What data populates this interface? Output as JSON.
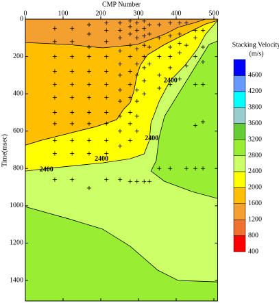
{
  "chart_data": {
    "type": "contour",
    "x_label": "CMP Number",
    "y_label": "Time(msec)",
    "xlim": [
      0,
      510
    ],
    "xticks": [
      0,
      100,
      200,
      300,
      400,
      500
    ],
    "ylim": [
      0,
      1510
    ],
    "yticks": [
      0,
      200,
      400,
      600,
      800,
      1000,
      1200,
      1400
    ],
    "y_reversed": true,
    "background_color": "#ccff66",
    "regions": [
      {
        "color": "#99ee33",
        "points": [
          [
            0,
            1005
          ],
          [
            115,
            1070
          ],
          [
            205,
            1125
          ],
          [
            278,
            1217
          ],
          [
            351,
            1345
          ],
          [
            405,
            1400
          ],
          [
            510,
            1408
          ],
          [
            510,
            1510
          ],
          [
            0,
            1510
          ]
        ]
      },
      {
        "color": "#99ee33",
        "points": [
          [
            487,
            136
          ],
          [
            369,
            521
          ],
          [
            355,
            631
          ],
          [
            347,
            759
          ],
          [
            333,
            814
          ],
          [
            369,
            869
          ],
          [
            442,
            924
          ],
          [
            510,
            961
          ],
          [
            510,
            117
          ]
        ]
      },
      {
        "color": "#ffff00",
        "points": [
          [
            0,
            814
          ],
          [
            78,
            796
          ],
          [
            205,
            770
          ],
          [
            278,
            748
          ],
          [
            315,
            722
          ],
          [
            329,
            649
          ],
          [
            333,
            557
          ],
          [
            355,
            440
          ],
          [
            384,
            330
          ],
          [
            424,
            246
          ],
          [
            456,
            161
          ],
          [
            478,
            81
          ],
          [
            510,
            7
          ],
          [
            478,
            26
          ],
          [
            442,
            62
          ],
          [
            405,
            99
          ],
          [
            369,
            136
          ],
          [
            324,
            191
          ],
          [
            305,
            246
          ],
          [
            296,
            301
          ],
          [
            287,
            392
          ],
          [
            278,
            447
          ],
          [
            260,
            484
          ],
          [
            242,
            539
          ],
          [
            187,
            576
          ],
          [
            115,
            612
          ],
          [
            42,
            649
          ],
          [
            0,
            675
          ]
        ]
      },
      {
        "color": "#ffbf00",
        "points": [
          [
            0,
            0
          ],
          [
            510,
            0
          ],
          [
            510,
            7
          ],
          [
            478,
            26
          ],
          [
            442,
            62
          ],
          [
            405,
            99
          ],
          [
            369,
            136
          ],
          [
            324,
            191
          ],
          [
            305,
            246
          ],
          [
            296,
            301
          ],
          [
            287,
            392
          ],
          [
            278,
            447
          ],
          [
            260,
            484
          ],
          [
            242,
            539
          ],
          [
            187,
            576
          ],
          [
            115,
            612
          ],
          [
            42,
            649
          ],
          [
            0,
            675
          ]
        ]
      },
      {
        "color": "#f4a030",
        "points": [
          [
            0,
            0
          ],
          [
            478,
            0
          ],
          [
            451,
            18
          ],
          [
            405,
            44
          ],
          [
            369,
            81
          ],
          [
            296,
            136
          ],
          [
            205,
            154
          ],
          [
            115,
            136
          ],
          [
            0,
            125
          ]
        ]
      }
    ],
    "contour_labels": [
      {
        "text": "2400",
        "x": 385,
        "y": 330
      },
      {
        "text": "2400",
        "x": 335,
        "y": 640
      },
      {
        "text": "2400",
        "x": 202,
        "y": 751
      },
      {
        "text": "2400",
        "x": 56,
        "y": 807
      }
    ],
    "points": [
      [
        78,
        50
      ],
      [
        78,
        120
      ],
      [
        78,
        200
      ],
      [
        78,
        280
      ],
      [
        78,
        350
      ],
      [
        78,
        420
      ],
      [
        78,
        500
      ],
      [
        78,
        560
      ],
      [
        78,
        650
      ],
      [
        78,
        720
      ],
      [
        78,
        860
      ],
      [
        124,
        50
      ],
      [
        124,
        120
      ],
      [
        124,
        200
      ],
      [
        124,
        280
      ],
      [
        124,
        350
      ],
      [
        124,
        420
      ],
      [
        124,
        500
      ],
      [
        124,
        560
      ],
      [
        124,
        650
      ],
      [
        124,
        720
      ],
      [
        124,
        860
      ],
      [
        169,
        30
      ],
      [
        169,
        80
      ],
      [
        169,
        150
      ],
      [
        169,
        200
      ],
      [
        169,
        280
      ],
      [
        169,
        350
      ],
      [
        169,
        420
      ],
      [
        169,
        500
      ],
      [
        169,
        560
      ],
      [
        169,
        650
      ],
      [
        169,
        720
      ],
      [
        169,
        905
      ],
      [
        215,
        20
      ],
      [
        215,
        60
      ],
      [
        215,
        120
      ],
      [
        215,
        200
      ],
      [
        215,
        280
      ],
      [
        215,
        350
      ],
      [
        215,
        420
      ],
      [
        215,
        500
      ],
      [
        215,
        560
      ],
      [
        215,
        650
      ],
      [
        215,
        720
      ],
      [
        215,
        860
      ],
      [
        251,
        20
      ],
      [
        251,
        60
      ],
      [
        251,
        100
      ],
      [
        251,
        170
      ],
      [
        251,
        240
      ],
      [
        251,
        300
      ],
      [
        251,
        380
      ],
      [
        251,
        440
      ],
      [
        251,
        520
      ],
      [
        251,
        600
      ],
      [
        251,
        680
      ],
      [
        251,
        860
      ],
      [
        278,
        10
      ],
      [
        278,
        40
      ],
      [
        278,
        80
      ],
      [
        278,
        140
      ],
      [
        278,
        200
      ],
      [
        278,
        280
      ],
      [
        278,
        350
      ],
      [
        278,
        420
      ],
      [
        278,
        500
      ],
      [
        278,
        560
      ],
      [
        278,
        650
      ],
      [
        278,
        870
      ],
      [
        296,
        20
      ],
      [
        296,
        60
      ],
      [
        296,
        100
      ],
      [
        296,
        160
      ],
      [
        296,
        240
      ],
      [
        296,
        300
      ],
      [
        296,
        380
      ],
      [
        296,
        440
      ],
      [
        296,
        520
      ],
      [
        296,
        600
      ],
      [
        296,
        870
      ],
      [
        315,
        10
      ],
      [
        315,
        50
      ],
      [
        315,
        90
      ],
      [
        315,
        140
      ],
      [
        315,
        200
      ],
      [
        315,
        260
      ],
      [
        315,
        330
      ],
      [
        315,
        400
      ],
      [
        315,
        870
      ],
      [
        329,
        30
      ],
      [
        329,
        80
      ],
      [
        329,
        150
      ],
      [
        329,
        240
      ],
      [
        329,
        870
      ],
      [
        355,
        30
      ],
      [
        355,
        100
      ],
      [
        355,
        200
      ],
      [
        355,
        300
      ],
      [
        355,
        370
      ],
      [
        355,
        800
      ],
      [
        384,
        20
      ],
      [
        384,
        90
      ],
      [
        384,
        150
      ],
      [
        384,
        200
      ],
      [
        384,
        260
      ],
      [
        384,
        350
      ],
      [
        384,
        800
      ],
      [
        409,
        20
      ],
      [
        409,
        80
      ],
      [
        409,
        130
      ],
      [
        409,
        180
      ],
      [
        409,
        320
      ],
      [
        427,
        20
      ],
      [
        427,
        140
      ],
      [
        427,
        250
      ],
      [
        427,
        800
      ],
      [
        451,
        60
      ],
      [
        451,
        100
      ],
      [
        451,
        200
      ],
      [
        451,
        350
      ],
      [
        451,
        570
      ],
      [
        451,
        800
      ],
      [
        471,
        60
      ],
      [
        471,
        150
      ],
      [
        471,
        230
      ],
      [
        471,
        350
      ],
      [
        471,
        550
      ],
      [
        471,
        800
      ]
    ],
    "colorbar": {
      "title": "Stacking Velocity",
      "unit": "(m/s)",
      "labels": [
        400,
        800,
        1200,
        1600,
        2000,
        2400,
        2800,
        3200,
        3600,
        3800,
        4200,
        4600
      ],
      "colors": [
        "#ff0000",
        "#f07030",
        "#f4a030",
        "#ffbf00",
        "#ffff00",
        "#ccff66",
        "#99ee33",
        "#66cc33",
        "#99cccc",
        "#00ffff",
        "#6699ff",
        "#0000ff"
      ]
    }
  }
}
